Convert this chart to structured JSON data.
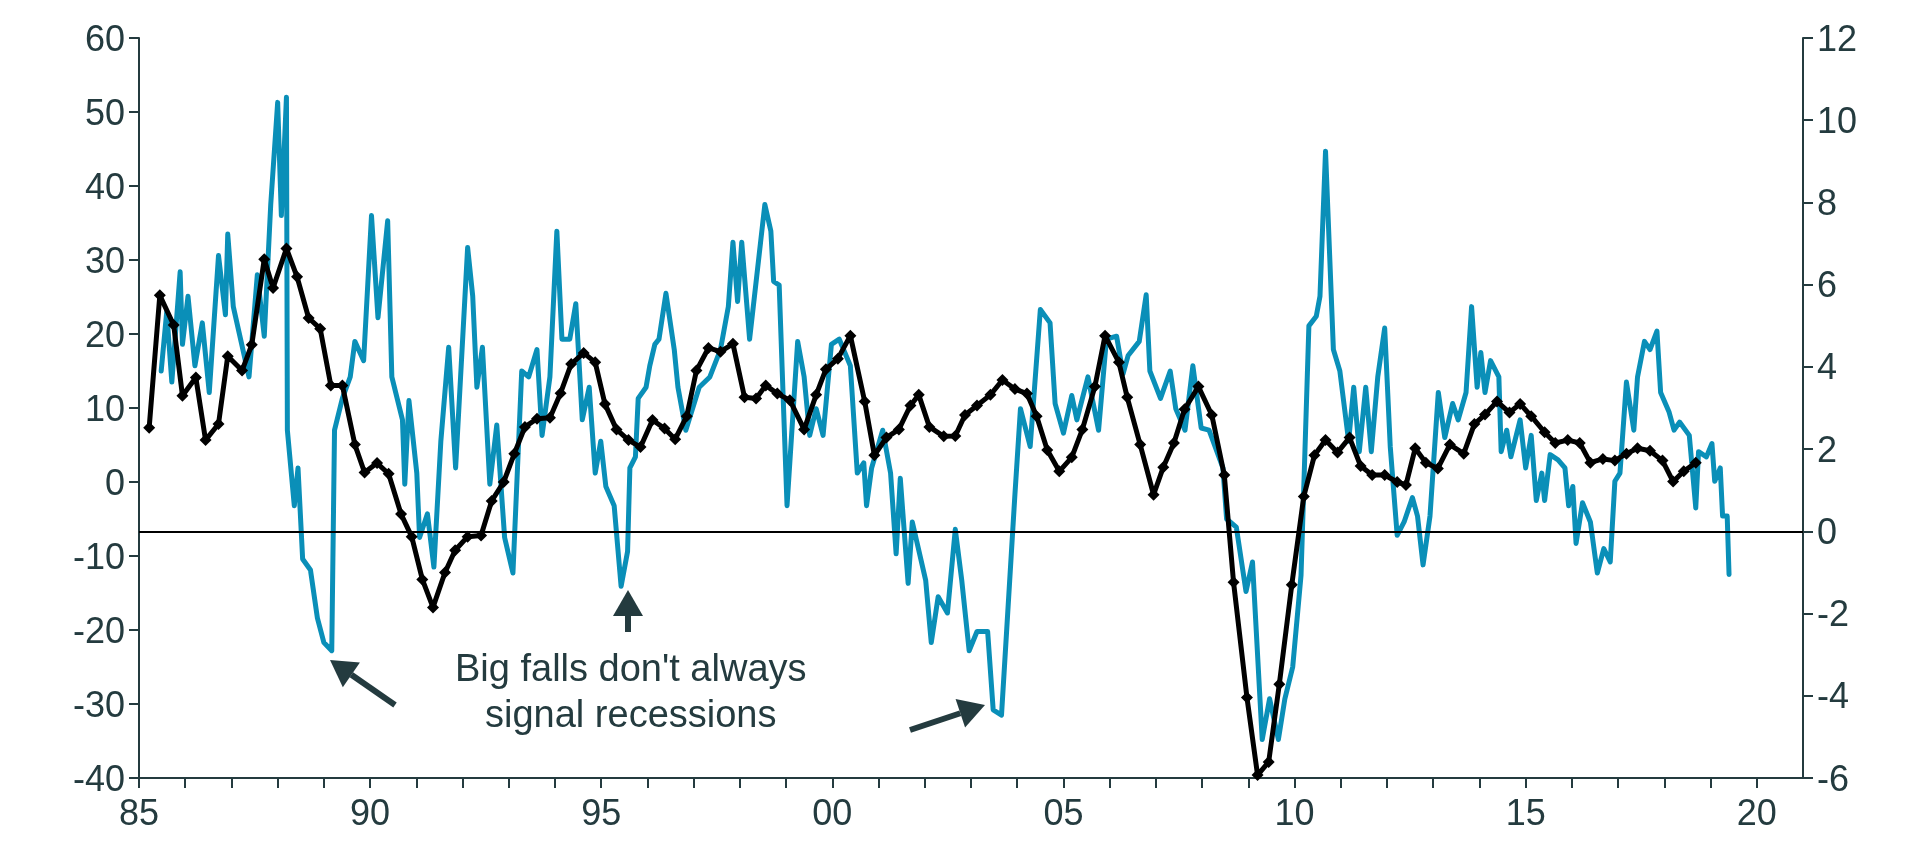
{
  "chart_data": {
    "type": "line",
    "xlim": [
      1985,
      2021
    ],
    "xticks": [
      {
        "value": 1985,
        "label": "85"
      },
      {
        "value": 1986,
        "label": null
      },
      {
        "value": 1987,
        "label": null
      },
      {
        "value": 1988,
        "label": null
      },
      {
        "value": 1989,
        "label": null
      },
      {
        "value": 1990,
        "label": "90"
      },
      {
        "value": 1991,
        "label": null
      },
      {
        "value": 1992,
        "label": null
      },
      {
        "value": 1993,
        "label": null
      },
      {
        "value": 1994,
        "label": null
      },
      {
        "value": 1995,
        "label": "95"
      },
      {
        "value": 1996,
        "label": null
      },
      {
        "value": 1997,
        "label": null
      },
      {
        "value": 1998,
        "label": null
      },
      {
        "value": 1999,
        "label": null
      },
      {
        "value": 2000,
        "label": "00"
      },
      {
        "value": 2001,
        "label": null
      },
      {
        "value": 2002,
        "label": null
      },
      {
        "value": 2003,
        "label": null
      },
      {
        "value": 2004,
        "label": null
      },
      {
        "value": 2005,
        "label": "05"
      },
      {
        "value": 2006,
        "label": null
      },
      {
        "value": 2007,
        "label": null
      },
      {
        "value": 2008,
        "label": null
      },
      {
        "value": 2009,
        "label": null
      },
      {
        "value": 2010,
        "label": "10"
      },
      {
        "value": 2011,
        "label": null
      },
      {
        "value": 2012,
        "label": null
      },
      {
        "value": 2013,
        "label": null
      },
      {
        "value": 2014,
        "label": null
      },
      {
        "value": 2015,
        "label": "15"
      },
      {
        "value": 2016,
        "label": null
      },
      {
        "value": 2017,
        "label": null
      },
      {
        "value": 2018,
        "label": null
      },
      {
        "value": 2019,
        "label": null
      },
      {
        "value": 2020,
        "label": "20"
      }
    ],
    "ylim": [
      -40,
      60
    ],
    "yticks": [
      -40,
      -30,
      -20,
      -10,
      0,
      10,
      20,
      30,
      40,
      50,
      60
    ],
    "y2lim": [
      -6,
      12
    ],
    "y2ticks": [
      -6,
      -4,
      -2,
      0,
      2,
      4,
      6,
      8,
      10,
      12
    ],
    "grid": false,
    "ref_lines": [
      {
        "axis": "y2",
        "value": 0,
        "color": "#000000"
      }
    ],
    "annotations": [
      "Big falls don't always\nsignal recessions"
    ],
    "series": [
      {
        "color": "#0a8fb8",
        "marker": "none",
        "x": [
          1985.48,
          1985.6,
          1985.71,
          1985.89,
          1985.94,
          1986.06,
          1986.21,
          1986.37,
          1986.52,
          1986.72,
          1986.87,
          1986.92,
          1987.04,
          1987.38,
          1987.56,
          1987.71,
          1987.85,
          1988.0,
          1988.08,
          1988.19,
          1988.21,
          1988.36,
          1988.44,
          1988.54,
          1988.71,
          1988.86,
          1989.0,
          1989.17,
          1989.23,
          1989.4,
          1989.57,
          1989.67,
          1989.86,
          1990.03,
          1990.17,
          1990.38,
          1990.47,
          1990.7,
          1990.75,
          1990.84,
          1991.01,
          1991.07,
          1991.24,
          1991.38,
          1991.53,
          1991.7,
          1991.85,
          1992.11,
          1992.22,
          1992.31,
          1992.43,
          1992.59,
          1992.74,
          1992.91,
          1993.09,
          1993.28,
          1993.43,
          1993.61,
          1993.72,
          1993.89,
          1994.04,
          1994.15,
          1994.32,
          1994.45,
          1994.59,
          1994.74,
          1994.87,
          1994.99,
          1995.1,
          1995.28,
          1995.43,
          1995.57,
          1995.62,
          1995.74,
          1995.8,
          1995.97,
          1996.05,
          1996.16,
          1996.25,
          1996.4,
          1996.58,
          1996.66,
          1996.83,
          1997.12,
          1997.35,
          1997.58,
          1997.75,
          1997.85,
          1997.95,
          1998.04,
          1998.21,
          1998.54,
          1998.67,
          1998.73,
          1998.85,
          1999.02,
          1999.25,
          1999.39,
          1999.51,
          1999.65,
          1999.8,
          1999.98,
          2000.15,
          2000.39,
          2000.54,
          2000.68,
          2000.74,
          2000.85,
          2001.09,
          2001.26,
          2001.38,
          2001.47,
          2001.64,
          2001.73,
          2002.02,
          2002.14,
          2002.29,
          2002.49,
          2002.66,
          2002.8,
          2002.96,
          2003.13,
          2003.36,
          2003.48,
          2003.66,
          2003.77,
          2003.95,
          2004.07,
          2004.28,
          2004.5,
          2004.71,
          2004.82,
          2005.0,
          2005.18,
          2005.29,
          2005.53,
          2005.76,
          2005.93,
          2006.15,
          2006.29,
          2006.4,
          2006.64,
          2006.79,
          2006.87,
          2007.1,
          2007.31,
          2007.43,
          2007.63,
          2007.8,
          2007.98,
          2008.15,
          2008.45,
          2008.53,
          2008.74,
          2008.95,
          2009.09,
          2009.3,
          2009.46,
          2009.65,
          2009.79,
          2009.96,
          2010.14,
          2010.31,
          2010.47,
          2010.55,
          2010.67,
          2010.84,
          2010.98,
          2011.17,
          2011.28,
          2011.4,
          2011.54,
          2011.66,
          2011.8,
          2011.95,
          2012.07,
          2012.22,
          2012.37,
          2012.55,
          2012.66,
          2012.78,
          2012.93,
          2013.11,
          2013.25,
          2013.42,
          2013.54,
          2013.71,
          2013.83,
          2013.95,
          2014.03,
          2014.12,
          2014.24,
          2014.42,
          2014.47,
          2014.59,
          2014.68,
          2014.88,
          2015.0,
          2015.12,
          2015.23,
          2015.35,
          2015.41,
          2015.53,
          2015.7,
          2015.85,
          2015.93,
          2016.02,
          2016.09,
          2016.23,
          2016.4,
          2016.55,
          2016.69,
          2016.83,
          2016.93,
          2017.04,
          2017.18,
          2017.34,
          2017.42,
          2017.57,
          2017.69,
          2017.84,
          2017.92,
          2018.1,
          2018.21,
          2018.33,
          2018.54,
          2018.68,
          2018.74,
          2018.91,
          2019.03,
          2019.09,
          2019.21,
          2019.26,
          2019.36,
          2019.4
        ],
        "values": [
          15,
          23,
          13.5,
          28.4,
          18.6,
          25.1,
          15.7,
          21.5,
          12.1,
          30.6,
          22.6,
          33.5,
          23.7,
          14.2,
          28,
          19.7,
          37.5,
          51.3,
          36,
          52,
          7,
          -3.2,
          1.9,
          -10.4,
          -11.9,
          -18.4,
          -21.7,
          -22.8,
          7,
          11.3,
          14.2,
          19,
          16.4,
          36,
          22.2,
          35.3,
          14.2,
          8.4,
          -0.3,
          11,
          1.2,
          -7.5,
          -4.3,
          -11.5,
          5.5,
          18.2,
          1.9,
          31.7,
          25.1,
          12.8,
          18.2,
          -0.3,
          7.7,
          -7.5,
          -12.3,
          15,
          14.2,
          17.9,
          6.3,
          14.2,
          33.9,
          19.3,
          19.3,
          24.1,
          8.4,
          12.8,
          1.2,
          5.5,
          -0.6,
          -3.2,
          -14.1,
          -9.4,
          1.9,
          3.4,
          11.3,
          12.8,
          15.7,
          18.6,
          19.3,
          25.5,
          17.9,
          12.8,
          7,
          12.8,
          14.2,
          17.9,
          23.7,
          32.4,
          24.4,
          32.4,
          19.3,
          37.5,
          33.9,
          27.1,
          26.6,
          -3.2,
          19,
          14.2,
          6.3,
          9.9,
          6.3,
          18.6,
          19.3,
          15.7,
          1.2,
          2.6,
          -3.2,
          1.9,
          7,
          1.2,
          -9.7,
          0.5,
          -13.7,
          -5.4,
          -13.3,
          -21.7,
          -15.5,
          -17.7,
          -6.4,
          -13.3,
          -22.8,
          -20.2,
          -20.2,
          -30.8,
          -31.5,
          -20.2,
          -1.7,
          9.9,
          4.8,
          23.3,
          21.5,
          10.6,
          6.6,
          11.7,
          8.4,
          14.2,
          7,
          19.3,
          19.7,
          14.6,
          17.1,
          19,
          25.3,
          15,
          11.3,
          15,
          9.9,
          7,
          15.7,
          7.3,
          7,
          1.9,
          -5,
          -6.1,
          -14.8,
          -10.8,
          -34.8,
          -29.3,
          -34.8,
          -29.3,
          -25,
          -12.6,
          21.1,
          22.4,
          25.1,
          44.7,
          17.9,
          15,
          5.5,
          12.8,
          4.1,
          12.8,
          4.1,
          14.2,
          20.8,
          4.8,
          -7.2,
          -5.4,
          -2.1,
          -4.6,
          -11.2,
          -4.6,
          12.1,
          6,
          10.6,
          8.4,
          12.1,
          23.7,
          12.8,
          17.5,
          12.1,
          16.4,
          14.2,
          4.1,
          7,
          3.4,
          8.4,
          1.9,
          6.3,
          -2.5,
          1.2,
          -2.5,
          3.7,
          3,
          1.9,
          -3.2,
          -0.6,
          -8.3,
          -2.8,
          -5.4,
          -12.3,
          -9,
          -10.8,
          0.1,
          1.2,
          13.5,
          7,
          14.2,
          19,
          17.9,
          20.4,
          12.1,
          9.5,
          7,
          8.1,
          6.3,
          -3.5,
          4.1,
          3.4,
          5.2,
          0.1,
          1.9,
          -4.6,
          -4.6,
          -12.5
        ]
      },
      {
        "color": "#000000",
        "marker": "diamond",
        "axis": "y2",
        "x": [
          1985.22,
          1985.45,
          1985.75,
          1985.94,
          1986.23,
          1986.44,
          1986.72,
          1986.92,
          1987.23,
          1987.44,
          1987.71,
          1987.9,
          1988.19,
          1988.42,
          1988.67,
          1988.92,
          1989.15,
          1989.4,
          1989.67,
          1989.88,
          1990.15,
          1990.4,
          1990.67,
          1990.9,
          1991.13,
          1991.36,
          1991.62,
          1991.84,
          1992.11,
          1992.4,
          1992.63,
          1992.89,
          1993.12,
          1993.35,
          1993.61,
          1993.89,
          1994.12,
          1994.35,
          1994.62,
          1994.87,
          1995.08,
          1995.33,
          1995.59,
          1995.85,
          1996.11,
          1996.37,
          1996.6,
          1996.85,
          1997.06,
          1997.32,
          1997.58,
          1997.85,
          1998.1,
          1998.35,
          1998.56,
          1998.81,
          1999.08,
          1999.39,
          1999.65,
          1999.86,
          2000.12,
          2000.39,
          2000.7,
          2000.91,
          2001.17,
          2001.44,
          2001.69,
          2001.87,
          2002.1,
          2002.41,
          2002.66,
          2002.87,
          2003.13,
          2003.42,
          2003.68,
          2003.95,
          2004.21,
          2004.42,
          2004.65,
          2004.91,
          2005.18,
          2005.41,
          2005.68,
          2005.9,
          2006.2,
          2006.38,
          2006.66,
          2006.95,
          2007.16,
          2007.39,
          2007.62,
          2007.92,
          2008.21,
          2008.48,
          2008.68,
          2008.97,
          2009.2,
          2009.44,
          2009.67,
          2009.94,
          2010.2,
          2010.43,
          2010.67,
          2010.93,
          2011.19,
          2011.43,
          2011.68,
          2011.95,
          2012.22,
          2012.41,
          2012.61,
          2012.84,
          2013.1,
          2013.36,
          2013.66,
          2013.89,
          2014.12,
          2014.38,
          2014.65,
          2014.88,
          2015.12,
          2015.41,
          2015.64,
          2015.91,
          2016.17,
          2016.4,
          2016.67,
          2016.93,
          2017.18,
          2017.42,
          2017.69,
          2017.96,
          2018.19,
          2018.42,
          2018.68
        ],
        "values": [
          2.52,
          5.74,
          5.02,
          3.3,
          3.74,
          2.22,
          2.61,
          4.26,
          3.91,
          4.54,
          6.62,
          5.92,
          6.88,
          6.19,
          5.19,
          4.93,
          3.55,
          3.55,
          2.11,
          1.43,
          1.66,
          1.4,
          0.42,
          -0.13,
          -1.17,
          -1.85,
          -1,
          -0.46,
          -0.13,
          -0.1,
          0.74,
          1.2,
          1.89,
          2.54,
          2.74,
          2.76,
          3.36,
          4.07,
          4.34,
          4.11,
          3.1,
          2.48,
          2.22,
          2.05,
          2.71,
          2.5,
          2.24,
          2.8,
          3.91,
          4.46,
          4.37,
          4.56,
          3.26,
          3.23,
          3.55,
          3.35,
          3.19,
          2.48,
          3.32,
          3.94,
          4.2,
          4.76,
          3.16,
          1.85,
          2.28,
          2.48,
          3.06,
          3.32,
          2.54,
          2.31,
          2.32,
          2.83,
          3.06,
          3.32,
          3.68,
          3.46,
          3.35,
          2.8,
          1.98,
          1.46,
          1.8,
          2.48,
          3.52,
          4.76,
          4.11,
          3.26,
          2.11,
          0.89,
          1.56,
          2.15,
          2.97,
          3.52,
          2.83,
          1.37,
          -1.24,
          -4.04,
          -5.93,
          -5.61,
          -3.72,
          -1.3,
          0.85,
          1.85,
          2.22,
          1.92,
          2.28,
          1.59,
          1.37,
          1.37,
          1.2,
          1.13,
          2.02,
          1.67,
          1.53,
          2.11,
          1.89,
          2.61,
          2.84,
          3.16,
          2.89,
          3.1,
          2.8,
          2.41,
          2.15,
          2.22,
          2.15,
          1.67,
          1.76,
          1.72,
          1.89,
          2.02,
          1.96,
          1.72,
          1.21,
          1.46,
          1.67
        ]
      }
    ]
  }
}
